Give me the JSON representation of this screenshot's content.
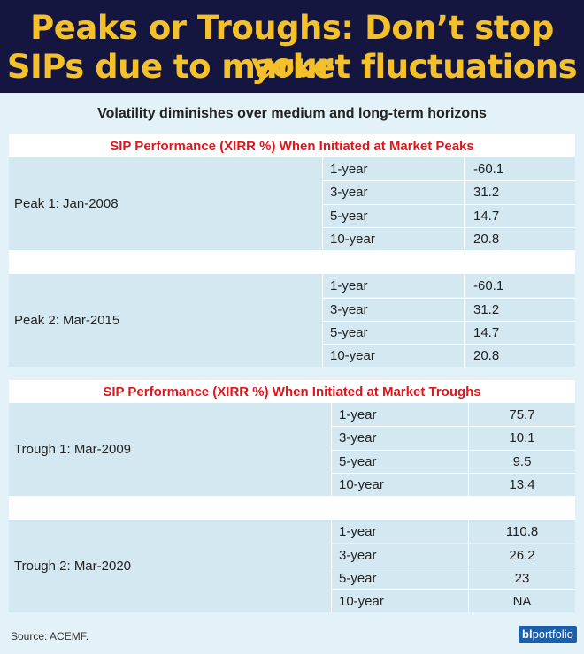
{
  "header": {
    "title_lines": [
      "Peaks or Troughs: Don’t stop your",
      "SIPs due to market fluctuations"
    ]
  },
  "subtitle": "Volatility diminishes over medium and long-term horizons",
  "sections": [
    {
      "heading": "SIP Performance (XIRR %) When Initiated at Market Peaks",
      "groups": [
        {
          "label": "Peak 1: Jan-2008",
          "rows": [
            [
              "1-year",
              "-60.1"
            ],
            [
              "3-year",
              "31.2"
            ],
            [
              "5-year",
              "14.7"
            ],
            [
              "10-year",
              "20.8"
            ]
          ]
        },
        {
          "label": "Peak 2: Mar-2015",
          "rows": [
            [
              "1-year",
              "-60.1"
            ],
            [
              "3-year",
              "31.2"
            ],
            [
              "5-year",
              "14.7"
            ],
            [
              "10-year",
              "20.8"
            ]
          ]
        }
      ]
    },
    {
      "heading": "SIP Performance (XIRR %) When Initiated at Market Troughs",
      "groups": [
        {
          "label": "Trough 1: Mar-2009",
          "rows": [
            [
              "1-year",
              "75.7"
            ],
            [
              "3-year",
              "10.1"
            ],
            [
              "5-year",
              "9.5"
            ],
            [
              "10-year",
              "13.4"
            ]
          ]
        },
        {
          "label": "Trough 2: Mar-2020",
          "rows": [
            [
              "1-year",
              "110.8"
            ],
            [
              "3-year",
              "26.2"
            ],
            [
              "5-year",
              "23"
            ],
            [
              "10-year",
              "NA"
            ]
          ]
        }
      ]
    }
  ],
  "source": "Source: ACEMF.",
  "logo": {
    "bl": "bl",
    "rest": "portfolio"
  }
}
